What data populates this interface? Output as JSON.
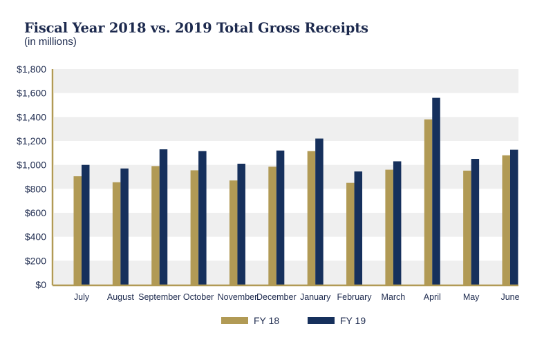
{
  "chart_data": {
    "type": "bar",
    "title": "Fiscal Year 2018 vs. 2019 Total Gross Receipts",
    "subtitle": "(in millions)",
    "xlabel": "",
    "ylabel": "",
    "categories": [
      "July",
      "August",
      "September",
      "October",
      "November",
      "December",
      "January",
      "February",
      "March",
      "April",
      "May",
      "June"
    ],
    "series": [
      {
        "name": "FY 18",
        "color": "#b19a55",
        "values": [
          905,
          855,
          990,
          955,
          870,
          985,
          1115,
          850,
          960,
          1380,
          952,
          1080
        ]
      },
      {
        "name": "FY 19",
        "color": "#16305c",
        "values": [
          1000,
          970,
          1130,
          1115,
          1010,
          1120,
          1220,
          945,
          1030,
          1560,
          1050,
          1127
        ]
      }
    ],
    "ylim": [
      0,
      1800
    ],
    "yticks": [
      0,
      200,
      400,
      600,
      800,
      1000,
      1200,
      1400,
      1600,
      1800
    ],
    "ytick_labels": [
      "$0",
      "$200",
      "$400",
      "$600",
      "$800",
      "$1,000",
      "$1,200",
      "$1,400",
      "$1,600",
      "$1,800"
    ],
    "grid": "alternating horizontal bands",
    "band_color": "#efefef",
    "axis_color": "#b19a55",
    "legend_position": "bottom-center"
  }
}
